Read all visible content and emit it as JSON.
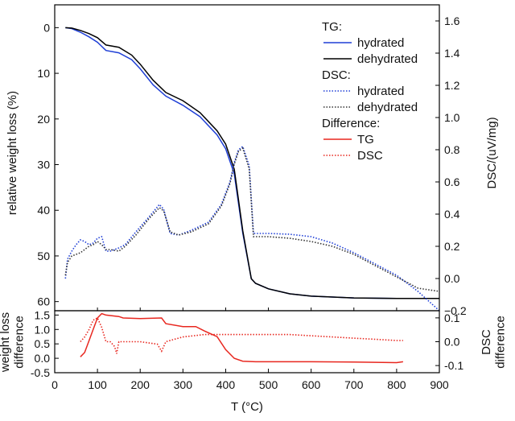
{
  "chart_data": {
    "type": "line",
    "xlabel": "T (°C)",
    "xlim": [
      0,
      900
    ],
    "x_ticks": [
      "0",
      "100",
      "200",
      "300",
      "400",
      "500",
      "600",
      "700",
      "800",
      "900"
    ],
    "top": {
      "ylabel_left": "relative weight loss (%)",
      "ylim_left": [
        -5,
        62
      ],
      "yticks_left": [
        "0",
        "10",
        "20",
        "30",
        "40",
        "50",
        "60"
      ],
      "ylabel_right": "DSC/(uV/mg)",
      "ylim_right": [
        -0.2,
        1.7
      ],
      "yticks_right": [
        "1.6",
        "1.4",
        "1.2",
        "1.0",
        "0.8",
        "0.6",
        "0.4",
        "0.2",
        "0.0",
        "−0.2"
      ],
      "series": [
        {
          "name": "hydrated",
          "group": "TG",
          "axis": "left",
          "color": "#1f3fd6",
          "dash": "solid",
          "x": [
            25,
            40,
            60,
            80,
            100,
            120,
            150,
            180,
            200,
            230,
            260,
            300,
            340,
            380,
            400,
            420,
            440,
            460,
            470,
            500,
            550,
            600,
            700,
            800,
            900
          ],
          "y": [
            0,
            0.2,
            1,
            2,
            3.2,
            5,
            5.5,
            7,
            9,
            12.5,
            15,
            17,
            19.5,
            23.5,
            26.5,
            32,
            45,
            55,
            56,
            57.2,
            58.3,
            58.8,
            59.2,
            59.3,
            59.3
          ]
        },
        {
          "name": "dehydrated",
          "group": "TG",
          "axis": "left",
          "color": "#000000",
          "dash": "solid",
          "x": [
            25,
            40,
            60,
            80,
            100,
            120,
            150,
            180,
            200,
            230,
            260,
            300,
            340,
            380,
            400,
            420,
            440,
            460,
            470,
            500,
            550,
            600,
            700,
            800,
            900
          ],
          "y": [
            0,
            0.1,
            0.6,
            1.3,
            2.2,
            3.8,
            4.3,
            6,
            8,
            11.5,
            14.2,
            16,
            18.6,
            22.6,
            25.5,
            31,
            44.5,
            55,
            56,
            57.2,
            58.3,
            58.8,
            59.2,
            59.3,
            59.3
          ]
        },
        {
          "name": "hydrated",
          "group": "DSC",
          "axis": "right",
          "color": "#1f3fd6",
          "dash": "dotted",
          "x": [
            25,
            30,
            40,
            50,
            60,
            70,
            80,
            90,
            100,
            110,
            120,
            130,
            150,
            165,
            190,
            220,
            245,
            255,
            270,
            290,
            320,
            360,
            390,
            410,
            420,
            430,
            440,
            455,
            465,
            500,
            550,
            600,
            650,
            700,
            750,
            800,
            850,
            900
          ],
          "y": [
            0,
            0.12,
            0.17,
            0.21,
            0.24,
            0.23,
            0.21,
            0.22,
            0.25,
            0.26,
            0.17,
            0.17,
            0.19,
            0.21,
            0.29,
            0.38,
            0.46,
            0.43,
            0.28,
            0.27,
            0.3,
            0.35,
            0.46,
            0.6,
            0.72,
            0.8,
            0.82,
            0.7,
            0.28,
            0.28,
            0.275,
            0.26,
            0.22,
            0.16,
            0.09,
            0.02,
            -0.08,
            -0.2
          ]
        },
        {
          "name": "dehydrated",
          "group": "DSC",
          "axis": "right",
          "color": "#333333",
          "dash": "dotted",
          "x": [
            25,
            30,
            40,
            50,
            60,
            70,
            80,
            90,
            100,
            110,
            120,
            130,
            150,
            165,
            190,
            220,
            245,
            255,
            270,
            290,
            320,
            360,
            390,
            410,
            420,
            430,
            440,
            455,
            465,
            500,
            550,
            600,
            650,
            700,
            750,
            800,
            850,
            900
          ],
          "y": [
            0.02,
            0.1,
            0.14,
            0.15,
            0.16,
            0.18,
            0.2,
            0.21,
            0.23,
            0.21,
            0.18,
            0.18,
            0.17,
            0.2,
            0.27,
            0.37,
            0.44,
            0.42,
            0.29,
            0.27,
            0.29,
            0.34,
            0.45,
            0.59,
            0.71,
            0.79,
            0.81,
            0.68,
            0.26,
            0.26,
            0.25,
            0.23,
            0.2,
            0.15,
            0.08,
            0.01,
            -0.06,
            -0.08
          ]
        }
      ]
    },
    "bottom": {
      "ylabel_left": "weight loss difference",
      "ylim_left": [
        -0.5,
        1.65
      ],
      "yticks_left": [
        "1.5",
        "1.0",
        "0.5",
        "0.0",
        "-0.5"
      ],
      "ylabel_right": "DSC difference",
      "ylim_right": [
        -0.13,
        0.13
      ],
      "yticks_right": [
        "0.1",
        "0.0",
        "-0.1"
      ],
      "series": [
        {
          "name": "TG",
          "group": "Difference",
          "axis": "left",
          "color": "#e8271f",
          "dash": "solid",
          "x": [
            60,
            70,
            80,
            90,
            100,
            110,
            120,
            150,
            160,
            200,
            250,
            260,
            300,
            330,
            350,
            380,
            400,
            420,
            440,
            470,
            500,
            600,
            700,
            800,
            815
          ],
          "y": [
            0.05,
            0.2,
            0.6,
            1.0,
            1.4,
            1.55,
            1.5,
            1.45,
            1.4,
            1.38,
            1.4,
            1.2,
            1.1,
            1.1,
            0.95,
            0.75,
            0.3,
            0,
            -0.1,
            -0.12,
            -0.12,
            -0.12,
            -0.13,
            -0.15,
            -0.12
          ]
        },
        {
          "name": "DSC",
          "group": "Difference",
          "axis": "right",
          "color": "#e8271f",
          "dash": "dotted",
          "x": [
            60,
            70,
            80,
            90,
            100,
            110,
            120,
            130,
            140,
            145,
            150,
            160,
            200,
            240,
            250,
            260,
            280,
            300,
            350,
            400,
            450,
            500,
            550,
            600,
            650,
            700,
            750,
            800,
            815
          ],
          "y": [
            0.0,
            0.02,
            0.05,
            0.09,
            0.1,
            0.06,
            0.0,
            0.0,
            -0.02,
            -0.05,
            0.0,
            0.0,
            0.0,
            -0.01,
            -0.04,
            0.0,
            0.01,
            0.02,
            0.03,
            0.03,
            0.03,
            0.03,
            0.03,
            0.025,
            0.02,
            0.015,
            0.01,
            0.005,
            0.005
          ]
        }
      ]
    },
    "legend": {
      "position": "top-right",
      "groups": [
        {
          "title": "TG:",
          "entries": [
            {
              "label": "hydrated",
              "color": "#1f3fd6",
              "dash": "solid"
            },
            {
              "label": "dehydrated",
              "color": "#000000",
              "dash": "solid"
            }
          ]
        },
        {
          "title": "DSC:",
          "entries": [
            {
              "label": "hydrated",
              "color": "#1f3fd6",
              "dash": "dotted"
            },
            {
              "label": "dehydrated",
              "color": "#333333",
              "dash": "dotted"
            }
          ]
        },
        {
          "title": "Difference:",
          "entries": [
            {
              "label": "TG",
              "color": "#e8271f",
              "dash": "solid"
            },
            {
              "label": "DSC",
              "color": "#e8271f",
              "dash": "dotted"
            }
          ]
        }
      ]
    }
  }
}
